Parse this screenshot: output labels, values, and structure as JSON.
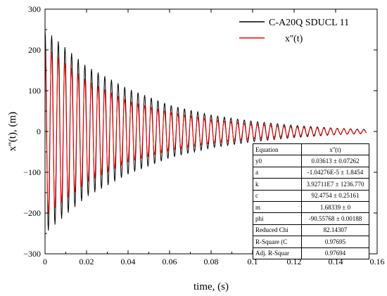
{
  "chart_data": {
    "type": "line",
    "xlabel": "time, (s)",
    "ylabel": "x''(t), (m)",
    "xlim": [
      0,
      0.16
    ],
    "ylim": [
      -300,
      300
    ],
    "x_ticks": [
      "0",
      "0.02",
      "0.04",
      "0.06",
      "0.08",
      "0.1",
      "0.12",
      "0.14",
      "0.16"
    ],
    "y_ticks": [
      "300",
      "200",
      "100",
      "0",
      "−100",
      "−200",
      "−300"
    ],
    "legend_position": "top-right",
    "series": [
      {
        "name": "C-A20Q SDUCL 11",
        "color": "#000000",
        "description_of_shape": "exponentially decaying oscillation",
        "envelope": {
          "x": [
            0,
            0.02,
            0.04,
            0.06,
            0.08,
            0.1,
            0.12,
            0.14,
            0.155
          ],
          "y": [
            250,
            160,
            105,
            65,
            40,
            25,
            15,
            8,
            5
          ]
        },
        "oscillation_period": 0.0032
      },
      {
        "name": "x''(t)",
        "color": "#ff0000",
        "envelope": {
          "x": [
            0,
            0.02,
            0.04,
            0.06,
            0.08,
            0.1,
            0.12,
            0.14,
            0.155
          ],
          "y": [
            210,
            125,
            75,
            47,
            29,
            18,
            11,
            7,
            4
          ]
        },
        "oscillation_period": 0.0032
      }
    ],
    "fit_table": {
      "header": [
        "Equation",
        "x''(t)"
      ],
      "rows": [
        [
          "y0",
          "0.03613 ± 0.07262"
        ],
        [
          "a",
          "-1.04276E-5 ± 1.8454"
        ],
        [
          "k",
          "3.92711E7 ± 1236.770"
        ],
        [
          "c",
          "92.4754 ± 0.25161"
        ],
        [
          "m",
          "1.68339 ± 0"
        ],
        [
          "phi",
          "-90.55768 ± 0.00188"
        ],
        [
          "Reduced Chi",
          "82.14307"
        ],
        [
          "R-Square (C",
          "0.97695"
        ],
        [
          "Adj. R-Squar",
          "0.97694"
        ]
      ]
    }
  }
}
